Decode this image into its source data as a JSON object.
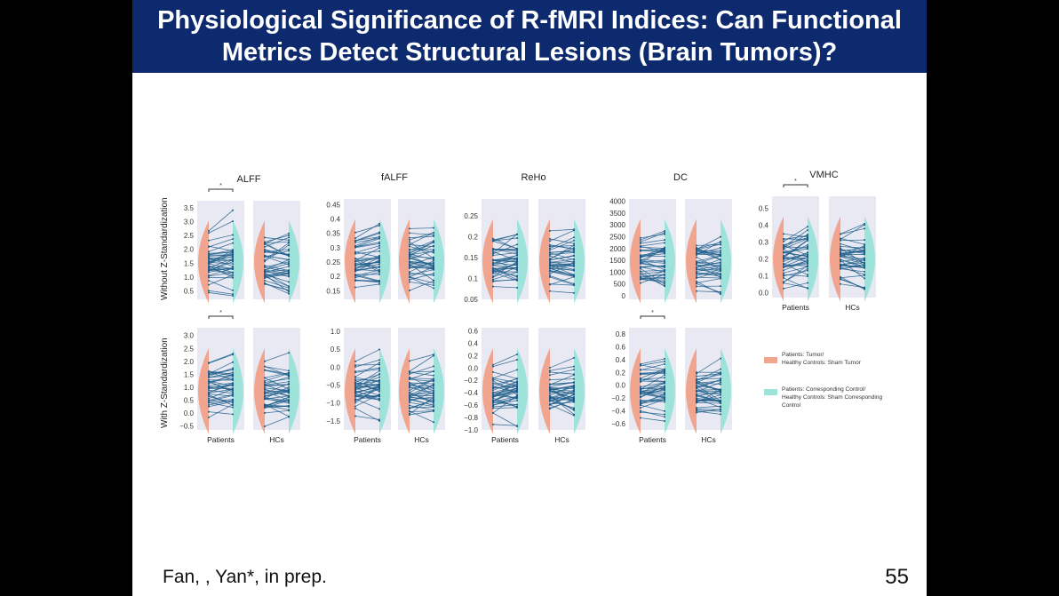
{
  "slide": {
    "title_line1": "Physiological Significance of R-fMRI Indices: Can Functional",
    "title_line2": "Metrics Detect Structural Lesions (Brain Tumors)?",
    "citation": "Fan, , Yan*, in prep.",
    "page_number": "55"
  },
  "figure": {
    "row_labels": [
      "Without Z-Standardization",
      "With Z-Standardization"
    ],
    "group_labels": [
      "Patients",
      "HCs"
    ],
    "significance_marker": "*",
    "legend": [
      {
        "lines": [
          "Patients: Tumor/",
          "Healthy Controls: Sham Tumor"
        ],
        "color": "#f2a58e"
      },
      {
        "lines": [
          "Patients: Corresponding Control/",
          "Healthy Controls: Sham Corresponding",
          "Control"
        ],
        "color": "#9ee3da"
      }
    ],
    "colors": {
      "panel_bg": "#e9e9f3",
      "lines": "#1f5f8b",
      "points": "#1a5a85"
    }
  },
  "chart_data": [
    {
      "type": "violin-paired",
      "metric": "ALFF",
      "row": "Without Z-Standardization",
      "yticks": [
        0.5,
        1.0,
        1.5,
        2.0,
        2.5,
        3.0,
        3.5
      ],
      "ylim": [
        0.2,
        3.75
      ],
      "significant": {
        "Patients": true,
        "HCs": false
      }
    },
    {
      "type": "violin-paired",
      "metric": "fALFF",
      "row": "Without Z-Standardization",
      "yticks": [
        0.15,
        0.2,
        0.25,
        0.3,
        0.35,
        0.4,
        0.45
      ],
      "ylim": [
        0.12,
        0.47
      ],
      "significant": {
        "Patients": false,
        "HCs": false
      }
    },
    {
      "type": "violin-paired",
      "metric": "ReHo",
      "row": "Without Z-Standardization",
      "yticks": [
        0.05,
        0.1,
        0.15,
        0.2,
        0.25
      ],
      "ylim": [
        0.05,
        0.29
      ],
      "significant": {
        "Patients": false,
        "HCs": false
      }
    },
    {
      "type": "violin-paired",
      "metric": "DC",
      "row": "Without Z-Standardization",
      "yticks": [
        0,
        500,
        1000,
        1500,
        2000,
        2500,
        3000,
        3500,
        4000
      ],
      "ylim": [
        -150,
        4100
      ],
      "significant": {
        "Patients": false,
        "HCs": false
      }
    },
    {
      "type": "violin-paired",
      "metric": "VMHC",
      "row": "Without Z-Standardization",
      "yticks": [
        0.0,
        0.1,
        0.2,
        0.3,
        0.4,
        0.5
      ],
      "ylim": [
        -0.03,
        0.57
      ],
      "significant": {
        "Patients": true,
        "HCs": false
      }
    },
    {
      "type": "violin-paired",
      "metric": "ALFF",
      "row": "With Z-Standardization",
      "yticks": [
        -0.5,
        0.0,
        0.5,
        1.0,
        1.5,
        2.0,
        2.5,
        3.0
      ],
      "ylim": [
        -0.65,
        3.3
      ],
      "significant": {
        "Patients": true,
        "HCs": false
      }
    },
    {
      "type": "violin-paired",
      "metric": "fALFF",
      "row": "With Z-Standardization",
      "yticks": [
        -1.5,
        -1.0,
        -0.5,
        0.0,
        0.5,
        1.0
      ],
      "ylim": [
        -1.75,
        1.1
      ],
      "significant": {
        "Patients": false,
        "HCs": false
      }
    },
    {
      "type": "violin-paired",
      "metric": "ReHo",
      "row": "With Z-Standardization",
      "yticks": [
        -1.0,
        -0.8,
        -0.6,
        -0.4,
        -0.2,
        0.0,
        0.2,
        0.4,
        0.6
      ],
      "ylim": [
        -1.0,
        0.65
      ],
      "significant": {
        "Patients": false,
        "HCs": false
      }
    },
    {
      "type": "violin-paired",
      "metric": "DC",
      "row": "With Z-Standardization",
      "yticks": [
        -0.6,
        -0.4,
        -0.2,
        0.0,
        0.2,
        0.4,
        0.6,
        0.8
      ],
      "ylim": [
        -0.7,
        0.9
      ],
      "significant": {
        "Patients": true,
        "HCs": false
      }
    }
  ]
}
